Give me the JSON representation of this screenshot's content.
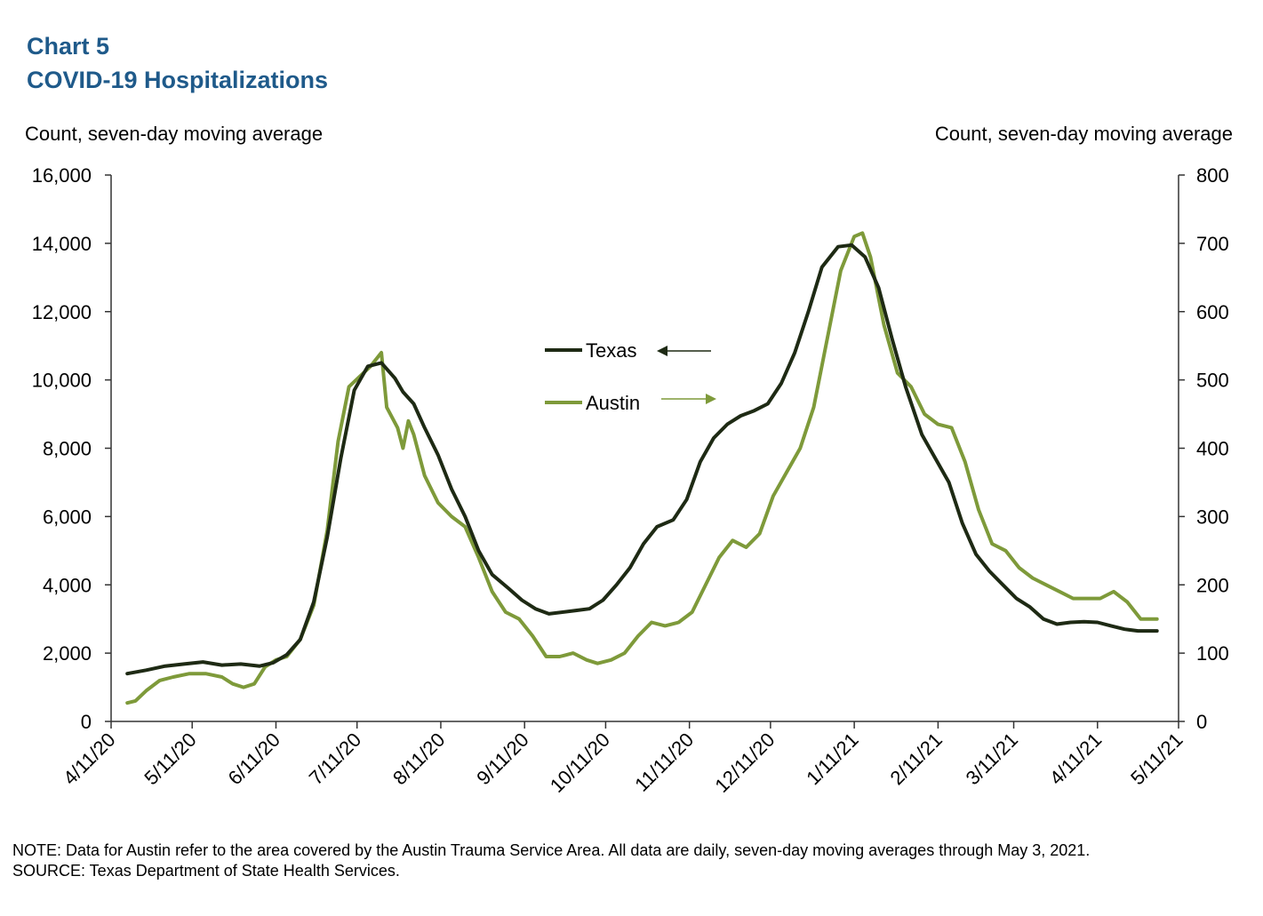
{
  "header": {
    "chart_label": "Chart 5",
    "title": "COVID-19 Hospitalizations"
  },
  "footer": {
    "note": "NOTE: Data for Austin refer to the area covered by the Austin Trauma Service Area. All data are daily, seven-day moving averages through May 3, 2021.",
    "source": "SOURCE: Texas Department of State Health Services."
  },
  "colors": {
    "texas": "#1e2a14",
    "austin": "#7e9a3a",
    "title": "#1f5a8a"
  },
  "chart_data": {
    "type": "line",
    "title": "COVID-19 Hospitalizations",
    "ylabel_left": "Count, seven-day moving average",
    "ylabel_right": "Count, seven-day moving average",
    "ylim_left": [
      0,
      16000
    ],
    "ylim_right": [
      0,
      800
    ],
    "xlim": [
      "2020-04-11",
      "2021-05-11"
    ],
    "grid": false,
    "legend_placement": "center",
    "y_ticks_left": [
      "0",
      "2,000",
      "4,000",
      "6,000",
      "8,000",
      "10,000",
      "12,000",
      "14,000",
      "16,000"
    ],
    "y_ticks_right": [
      "0",
      "100",
      "200",
      "300",
      "400",
      "500",
      "600",
      "700",
      "800"
    ],
    "x_ticks": [
      {
        "date": "2020-04-11",
        "label": "4/11/20"
      },
      {
        "date": "2020-05-11",
        "label": "5/11/20"
      },
      {
        "date": "2020-06-11",
        "label": "6/11/20"
      },
      {
        "date": "2020-07-11",
        "label": "7/11/20"
      },
      {
        "date": "2020-08-11",
        "label": "8/11/20"
      },
      {
        "date": "2020-09-11",
        "label": "9/11/20"
      },
      {
        "date": "2020-10-11",
        "label": "10/11/20"
      },
      {
        "date": "2020-11-11",
        "label": "11/11/20"
      },
      {
        "date": "2020-12-11",
        "label": "12/11/20"
      },
      {
        "date": "2021-01-11",
        "label": "1/11/21"
      },
      {
        "date": "2021-02-11",
        "label": "2/11/21"
      },
      {
        "date": "2021-03-11",
        "label": "3/11/21"
      },
      {
        "date": "2021-04-11",
        "label": "4/11/21"
      },
      {
        "date": "2021-05-11",
        "label": "5/11/21"
      }
    ],
    "series": [
      {
        "name": "Texas",
        "axis": "left",
        "legend_arrow": "left",
        "points": [
          [
            "2020-04-17",
            1400
          ],
          [
            "2020-04-24",
            1500
          ],
          [
            "2020-05-01",
            1620
          ],
          [
            "2020-05-08",
            1680
          ],
          [
            "2020-05-15",
            1740
          ],
          [
            "2020-05-22",
            1650
          ],
          [
            "2020-05-29",
            1680
          ],
          [
            "2020-06-05",
            1620
          ],
          [
            "2020-06-10",
            1720
          ],
          [
            "2020-06-15",
            1950
          ],
          [
            "2020-06-20",
            2400
          ],
          [
            "2020-06-25",
            3500
          ],
          [
            "2020-06-30",
            5400
          ],
          [
            "2020-07-05",
            7700
          ],
          [
            "2020-07-10",
            9700
          ],
          [
            "2020-07-15",
            10400
          ],
          [
            "2020-07-20",
            10500
          ],
          [
            "2020-07-25",
            10050
          ],
          [
            "2020-07-28",
            9650
          ],
          [
            "2020-08-01",
            9300
          ],
          [
            "2020-08-05",
            8600
          ],
          [
            "2020-08-10",
            7800
          ],
          [
            "2020-08-15",
            6800
          ],
          [
            "2020-08-20",
            6000
          ],
          [
            "2020-08-25",
            5000
          ],
          [
            "2020-08-30",
            4300
          ],
          [
            "2020-09-05",
            3900
          ],
          [
            "2020-09-10",
            3550
          ],
          [
            "2020-09-15",
            3300
          ],
          [
            "2020-09-20",
            3150
          ],
          [
            "2020-09-30",
            3250
          ],
          [
            "2020-10-05",
            3300
          ],
          [
            "2020-10-10",
            3550
          ],
          [
            "2020-10-15",
            4000
          ],
          [
            "2020-10-20",
            4500
          ],
          [
            "2020-10-25",
            5200
          ],
          [
            "2020-10-30",
            5700
          ],
          [
            "2020-11-05",
            5900
          ],
          [
            "2020-11-10",
            6500
          ],
          [
            "2020-11-15",
            7600
          ],
          [
            "2020-11-20",
            8300
          ],
          [
            "2020-11-25",
            8700
          ],
          [
            "2020-11-30",
            8950
          ],
          [
            "2020-12-05",
            9100
          ],
          [
            "2020-12-10",
            9300
          ],
          [
            "2020-12-15",
            9900
          ],
          [
            "2020-12-20",
            10800
          ],
          [
            "2020-12-25",
            12000
          ],
          [
            "2020-12-30",
            13300
          ],
          [
            "2021-01-05",
            13900
          ],
          [
            "2021-01-10",
            13950
          ],
          [
            "2021-01-15",
            13600
          ],
          [
            "2021-01-20",
            12700
          ],
          [
            "2021-01-25",
            11200
          ],
          [
            "2021-01-30",
            9800
          ],
          [
            "2021-02-05",
            8400
          ],
          [
            "2021-02-10",
            7700
          ],
          [
            "2021-02-15",
            7000
          ],
          [
            "2021-02-20",
            5800
          ],
          [
            "2021-02-25",
            4900
          ],
          [
            "2021-03-02",
            4400
          ],
          [
            "2021-03-07",
            4000
          ],
          [
            "2021-03-12",
            3600
          ],
          [
            "2021-03-17",
            3350
          ],
          [
            "2021-03-22",
            3000
          ],
          [
            "2021-03-27",
            2850
          ],
          [
            "2021-04-01",
            2900
          ],
          [
            "2021-04-06",
            2920
          ],
          [
            "2021-04-11",
            2900
          ],
          [
            "2021-04-16",
            2800
          ],
          [
            "2021-04-21",
            2700
          ],
          [
            "2021-04-26",
            2650
          ],
          [
            "2021-05-03",
            2650
          ]
        ]
      },
      {
        "name": "Austin",
        "axis": "right",
        "legend_arrow": "right",
        "points": [
          [
            "2020-04-17",
            27
          ],
          [
            "2020-04-20",
            30
          ],
          [
            "2020-04-24",
            45
          ],
          [
            "2020-04-29",
            60
          ],
          [
            "2020-05-04",
            65
          ],
          [
            "2020-05-10",
            70
          ],
          [
            "2020-05-16",
            70
          ],
          [
            "2020-05-22",
            65
          ],
          [
            "2020-05-26",
            55
          ],
          [
            "2020-05-30",
            50
          ],
          [
            "2020-06-03",
            55
          ],
          [
            "2020-06-07",
            80
          ],
          [
            "2020-06-11",
            90
          ],
          [
            "2020-06-15",
            95
          ],
          [
            "2020-06-20",
            120
          ],
          [
            "2020-06-25",
            170
          ],
          [
            "2020-06-30",
            280
          ],
          [
            "2020-07-04",
            410
          ],
          [
            "2020-07-08",
            490
          ],
          [
            "2020-07-12",
            505
          ],
          [
            "2020-07-16",
            520
          ],
          [
            "2020-07-20",
            540
          ],
          [
            "2020-07-22",
            460
          ],
          [
            "2020-07-26",
            430
          ],
          [
            "2020-07-28",
            400
          ],
          [
            "2020-07-30",
            440
          ],
          [
            "2020-08-01",
            420
          ],
          [
            "2020-08-05",
            360
          ],
          [
            "2020-08-10",
            320
          ],
          [
            "2020-08-15",
            300
          ],
          [
            "2020-08-20",
            285
          ],
          [
            "2020-08-25",
            240
          ],
          [
            "2020-08-30",
            190
          ],
          [
            "2020-09-04",
            160
          ],
          [
            "2020-09-09",
            150
          ],
          [
            "2020-09-14",
            125
          ],
          [
            "2020-09-19",
            95
          ],
          [
            "2020-09-24",
            95
          ],
          [
            "2020-09-29",
            100
          ],
          [
            "2020-10-04",
            90
          ],
          [
            "2020-10-08",
            85
          ],
          [
            "2020-10-13",
            90
          ],
          [
            "2020-10-18",
            100
          ],
          [
            "2020-10-23",
            125
          ],
          [
            "2020-10-28",
            145
          ],
          [
            "2020-11-02",
            140
          ],
          [
            "2020-11-07",
            145
          ],
          [
            "2020-11-12",
            160
          ],
          [
            "2020-11-17",
            200
          ],
          [
            "2020-11-22",
            240
          ],
          [
            "2020-11-27",
            265
          ],
          [
            "2020-12-02",
            255
          ],
          [
            "2020-12-07",
            275
          ],
          [
            "2020-12-12",
            330
          ],
          [
            "2020-12-17",
            365
          ],
          [
            "2020-12-22",
            400
          ],
          [
            "2020-12-27",
            460
          ],
          [
            "2021-01-01",
            560
          ],
          [
            "2021-01-06",
            660
          ],
          [
            "2021-01-11",
            710
          ],
          [
            "2021-01-14",
            715
          ],
          [
            "2021-01-17",
            680
          ],
          [
            "2021-01-22",
            580
          ],
          [
            "2021-01-27",
            510
          ],
          [
            "2021-02-01",
            490
          ],
          [
            "2021-02-06",
            450
          ],
          [
            "2021-02-11",
            435
          ],
          [
            "2021-02-16",
            430
          ],
          [
            "2021-02-21",
            380
          ],
          [
            "2021-02-26",
            310
          ],
          [
            "2021-03-03",
            260
          ],
          [
            "2021-03-08",
            250
          ],
          [
            "2021-03-13",
            225
          ],
          [
            "2021-03-18",
            210
          ],
          [
            "2021-03-23",
            200
          ],
          [
            "2021-03-28",
            190
          ],
          [
            "2021-04-02",
            180
          ],
          [
            "2021-04-07",
            180
          ],
          [
            "2021-04-12",
            180
          ],
          [
            "2021-04-17",
            190
          ],
          [
            "2021-04-22",
            175
          ],
          [
            "2021-04-27",
            150
          ],
          [
            "2021-05-03",
            150
          ]
        ]
      }
    ]
  }
}
